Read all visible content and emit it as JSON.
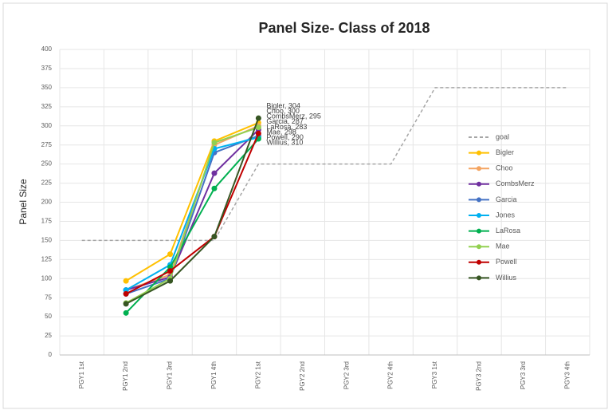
{
  "chart_data": {
    "type": "line",
    "title": "Panel Size- Class of 2018",
    "y_label": "Panel Size",
    "categories": [
      "PGY1 1st",
      "PGY1 2nd",
      "PGY1 3rd",
      "PGY1 4th",
      "PGY2 1st",
      "PGY2 2nd",
      "PGY2 3rd",
      "PGY2 4th",
      "PGY3 1st",
      "PGY3 2nd",
      "PGY3 3rd",
      "PGY3 4th"
    ],
    "series": [
      {
        "name": "goal",
        "color": "#a6a6a6",
        "dashed": true,
        "markers": false,
        "values": [
          150,
          150,
          150,
          150,
          250,
          250,
          250,
          250,
          350,
          350,
          350,
          350
        ]
      },
      {
        "name": "Bigler",
        "color": "#ffc000",
        "values": [
          null,
          97,
          132,
          280,
          304,
          null,
          null,
          null,
          null,
          null,
          null,
          null
        ],
        "value_labels": [
          null,
          null,
          null,
          null,
          "Bigler, 304",
          null,
          null,
          null,
          null,
          null,
          null,
          null
        ]
      },
      {
        "name": "Choo",
        "color": "#f4a460",
        "values": [
          null,
          85,
          105,
          275,
          300,
          null,
          null,
          null,
          null,
          null,
          null,
          null
        ],
        "value_labels": [
          null,
          null,
          null,
          null,
          "Choo, 300",
          null,
          null,
          null,
          null,
          null,
          null,
          null
        ]
      },
      {
        "name": "CombsMerz",
        "color": "#7030a0",
        "values": [
          null,
          85,
          102,
          238,
          295,
          null,
          null,
          null,
          null,
          null,
          null,
          null
        ],
        "value_labels": [
          null,
          null,
          null,
          null,
          "CombsMerz, 295",
          null,
          null,
          null,
          null,
          null,
          null,
          null
        ]
      },
      {
        "name": "Garcia",
        "color": "#4472c4",
        "values": [
          null,
          80,
          100,
          265,
          287,
          null,
          null,
          null,
          null,
          null,
          null,
          null
        ],
        "value_labels": [
          null,
          null,
          null,
          null,
          "Garcia, 287",
          null,
          null,
          null,
          null,
          null,
          null,
          null
        ]
      },
      {
        "name": "Jones",
        "color": "#00b0f0",
        "values": [
          null,
          85,
          118,
          270,
          285,
          null,
          null,
          null,
          null,
          null,
          null,
          null
        ]
      },
      {
        "name": "LaRosa",
        "color": "#00b050",
        "values": [
          null,
          55,
          115,
          218,
          283,
          null,
          null,
          null,
          null,
          null,
          null,
          null
        ],
        "value_labels": [
          null,
          null,
          null,
          null,
          "LaRosa, 283",
          null,
          null,
          null,
          null,
          null,
          null,
          null
        ]
      },
      {
        "name": "Mae",
        "color": "#92d050",
        "values": [
          null,
          68,
          100,
          278,
          298,
          null,
          null,
          null,
          null,
          null,
          null,
          null
        ],
        "value_labels": [
          null,
          null,
          null,
          null,
          "Mae, 298",
          null,
          null,
          null,
          null,
          null,
          null,
          null
        ]
      },
      {
        "name": "Powell",
        "color": "#c00000",
        "values": [
          null,
          80,
          110,
          155,
          290,
          null,
          null,
          null,
          null,
          null,
          null,
          null
        ],
        "value_labels": [
          null,
          null,
          null,
          null,
          "Powell, 290",
          null,
          null,
          null,
          null,
          null,
          null,
          null
        ]
      },
      {
        "name": "Willius",
        "color": "#375623",
        "values": [
          null,
          67,
          97,
          155,
          310,
          null,
          null,
          null,
          null,
          null,
          null,
          null
        ],
        "value_labels": [
          null,
          null,
          null,
          null,
          "Willius, 310",
          null,
          null,
          null,
          null,
          null,
          null,
          null
        ]
      }
    ],
    "ylim": [
      0,
      400
    ],
    "yticks": [
      0,
      25,
      50,
      75,
      100,
      125,
      150,
      175,
      200,
      225,
      250,
      275,
      300,
      325,
      350,
      375,
      400
    ],
    "grid": true,
    "legend": "right"
  }
}
